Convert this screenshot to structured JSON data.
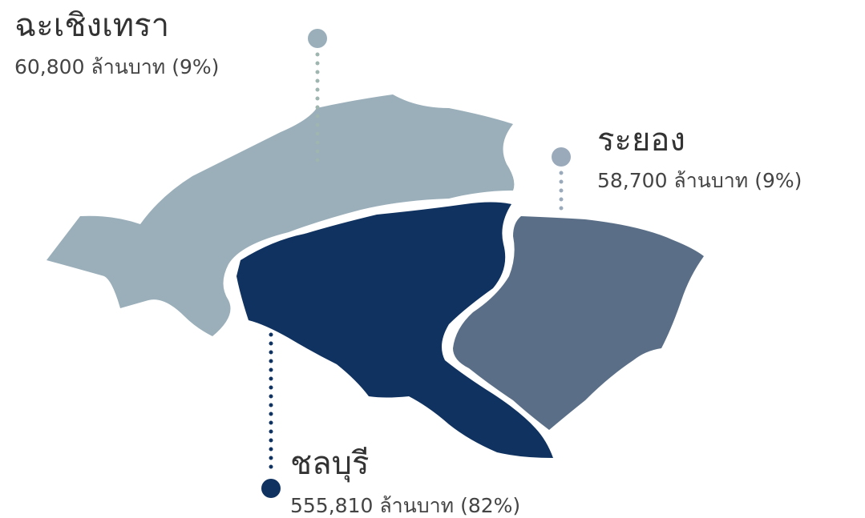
{
  "regions": [
    {
      "name": "ฉะเชิงเทรา",
      "value_label": "60,800 ล้านบาท (9%)"
    },
    {
      "name": "ระยอง",
      "value_label": "58,700 ล้านบาท (9%)"
    },
    {
      "name": "ชลบุรี",
      "value_label": "555,810 ล้านบาท (82%)"
    }
  ]
}
